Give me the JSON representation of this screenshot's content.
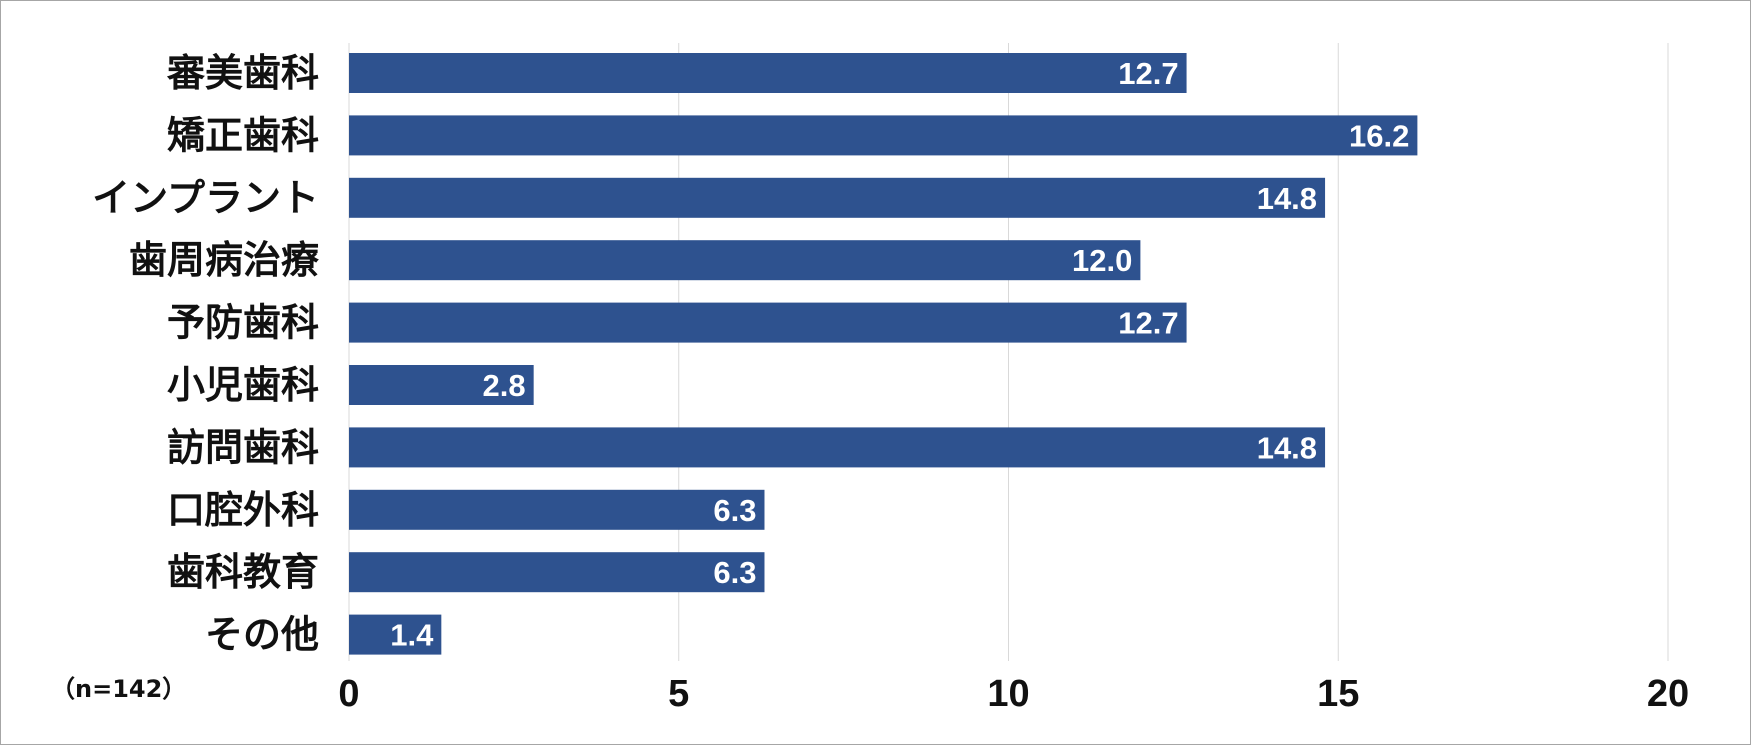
{
  "chart_data": {
    "type": "bar",
    "orientation": "horizontal",
    "categories": [
      "審美歯科",
      "矯正歯科",
      "インプラント",
      "歯周病治療",
      "予防歯科",
      "小児歯科",
      "訪問歯科",
      "口腔外科",
      "歯科教育",
      "その他"
    ],
    "values": [
      12.7,
      16.2,
      14.8,
      12.0,
      12.7,
      2.8,
      14.8,
      6.3,
      6.3,
      1.4
    ],
    "data_labels": [
      "12.7",
      "16.2",
      "14.8",
      "12.0",
      "12.7",
      "2.8",
      "14.8",
      "6.3",
      "6.3",
      "1.4"
    ],
    "xlim": [
      0,
      20
    ],
    "xticks": [
      0,
      5,
      10,
      15,
      20
    ],
    "xtick_labels": [
      "0",
      "5",
      "10",
      "15",
      "20"
    ],
    "grid": "vertical",
    "bar_color": "#2e528f",
    "note": "（n=142）"
  }
}
